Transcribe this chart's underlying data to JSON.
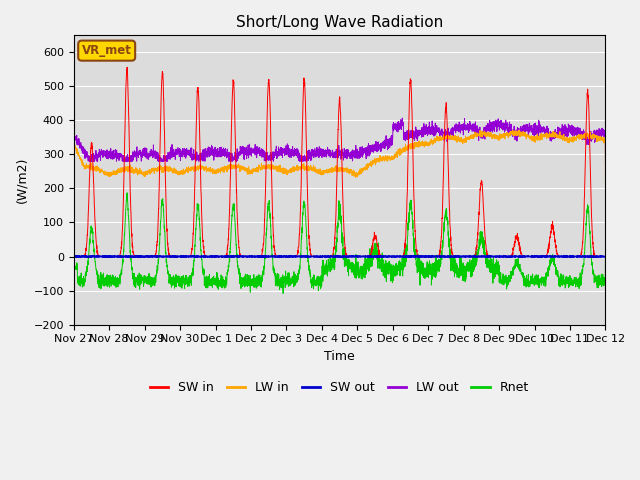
{
  "title": "Short/Long Wave Radiation",
  "xlabel": "Time",
  "ylabel": "(W/m2)",
  "ylim": [
    -200,
    650
  ],
  "yticks": [
    -200,
    -100,
    0,
    100,
    200,
    300,
    400,
    500,
    600
  ],
  "colors": {
    "SW_in": "#ff0000",
    "LW_in": "#ffa500",
    "SW_out": "#0000cd",
    "LW_out": "#9400d3",
    "Rnet": "#00cc00"
  },
  "legend_labels": [
    "SW in",
    "LW in",
    "SW out",
    "LW out",
    "Rnet"
  ],
  "annotation_text": "VR_met",
  "annotation_color": "#8B4513",
  "annotation_bg": "#FFD700",
  "x_tick_labels": [
    "Nov 27",
    "Nov 28",
    "Nov 29",
    "Nov 30",
    "Dec 1",
    "Dec 2",
    "Dec 3",
    "Dec 4",
    "Dec 5",
    "Dec 6",
    "Dec 7",
    "Dec 8",
    "Dec 9",
    "Dec 10",
    "Dec 11",
    "Dec 12"
  ],
  "plot_bg": "#dcdcdc",
  "fig_bg": "#f0f0f0",
  "grid_color": "#ffffff",
  "n_points": 3600,
  "days": 15
}
